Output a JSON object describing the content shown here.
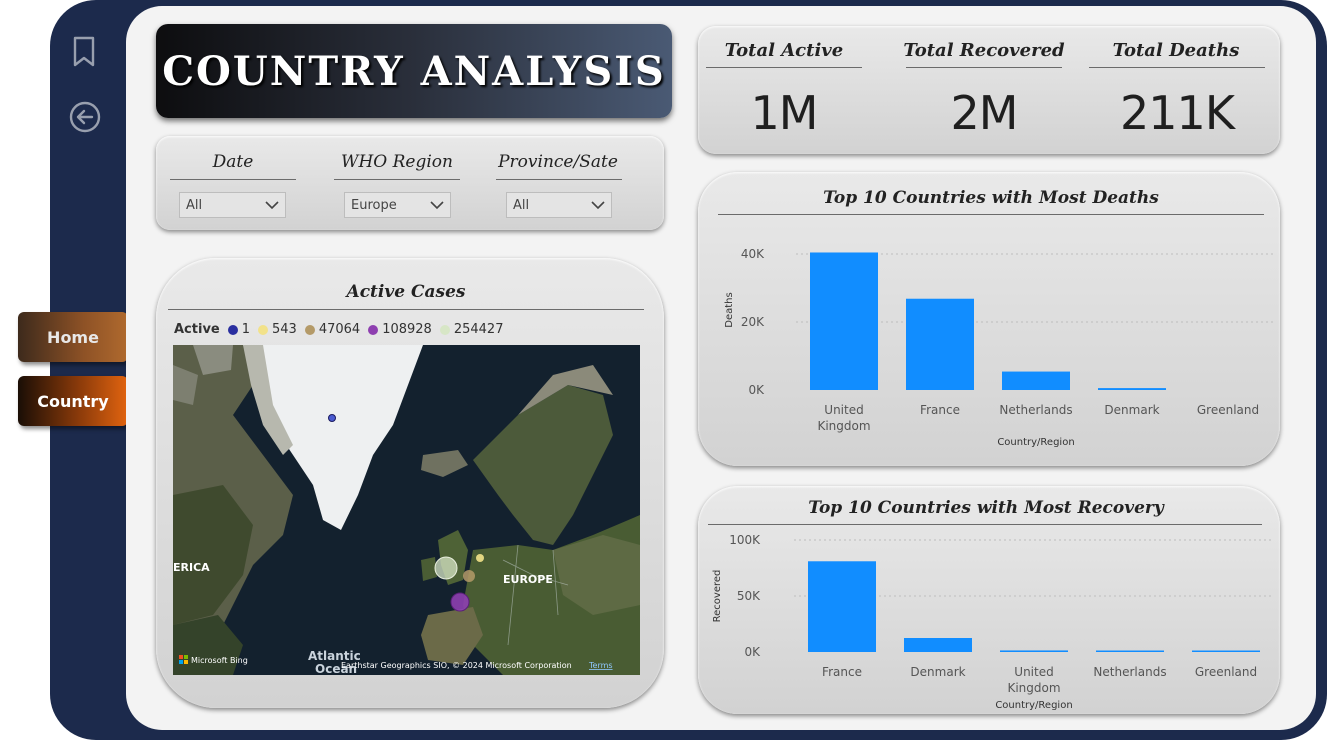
{
  "nav": {
    "home_label": "Home",
    "country_label": "Country"
  },
  "page": {
    "title": "COUNTRY ANALYSIS"
  },
  "filters": [
    {
      "label": "Date",
      "value": "All"
    },
    {
      "label": "WHO Region",
      "value": "Europe"
    },
    {
      "label": "Province/Sate",
      "value": "All"
    }
  ],
  "kpis": [
    {
      "label": "Total Active",
      "value": "1M"
    },
    {
      "label": "Total Recovered",
      "value": "2M"
    },
    {
      "label": "Total Deaths",
      "value": "211K"
    }
  ],
  "map_card": {
    "title": "Active Cases",
    "legend_title": "Active",
    "legend": [
      {
        "label": "1",
        "color": "#2a2fa0"
      },
      {
        "label": "543",
        "color": "#f2e28a"
      },
      {
        "label": "47064",
        "color": "#b49a68"
      },
      {
        "label": "108928",
        "color": "#8e3fb0"
      },
      {
        "label": "254427",
        "color": "#d7e6c6"
      }
    ],
    "labels": {
      "america": "ERICA",
      "europe": "EUROPE",
      "atlantic": "Atlantic",
      "ocean": "Ocean",
      "bing": "Microsoft Bing",
      "credit": "Earthstar Geographics SIO, © 2024 Microsoft Corporation",
      "terms": "Terms"
    }
  },
  "chart_data": [
    {
      "type": "bar",
      "title": "Top 10 Countries with Most Deaths",
      "xlabel": "Country/Region",
      "ylabel": "Deaths",
      "categories": [
        "United Kingdom",
        "France",
        "Netherlands",
        "Denmark",
        "Greenland"
      ],
      "values": [
        45500,
        30200,
        6100,
        630,
        0
      ],
      "ylim": [
        0,
        45000
      ],
      "yticks": [
        "0K",
        "20K",
        "40K"
      ],
      "grid": true,
      "color": "#118dff"
    },
    {
      "type": "bar",
      "title": "Top 10 Countries with Most Recovery",
      "xlabel": "Country/Region",
      "ylabel": "Recovered",
      "categories": [
        "France",
        "Denmark",
        "United Kingdom",
        "Netherlands",
        "Greenland"
      ],
      "values": [
        81000,
        12500,
        1400,
        250,
        13
      ],
      "ylim": [
        0,
        100000
      ],
      "yticks": [
        "0K",
        "50K",
        "100K"
      ],
      "grid": true,
      "color": "#118dff"
    }
  ]
}
